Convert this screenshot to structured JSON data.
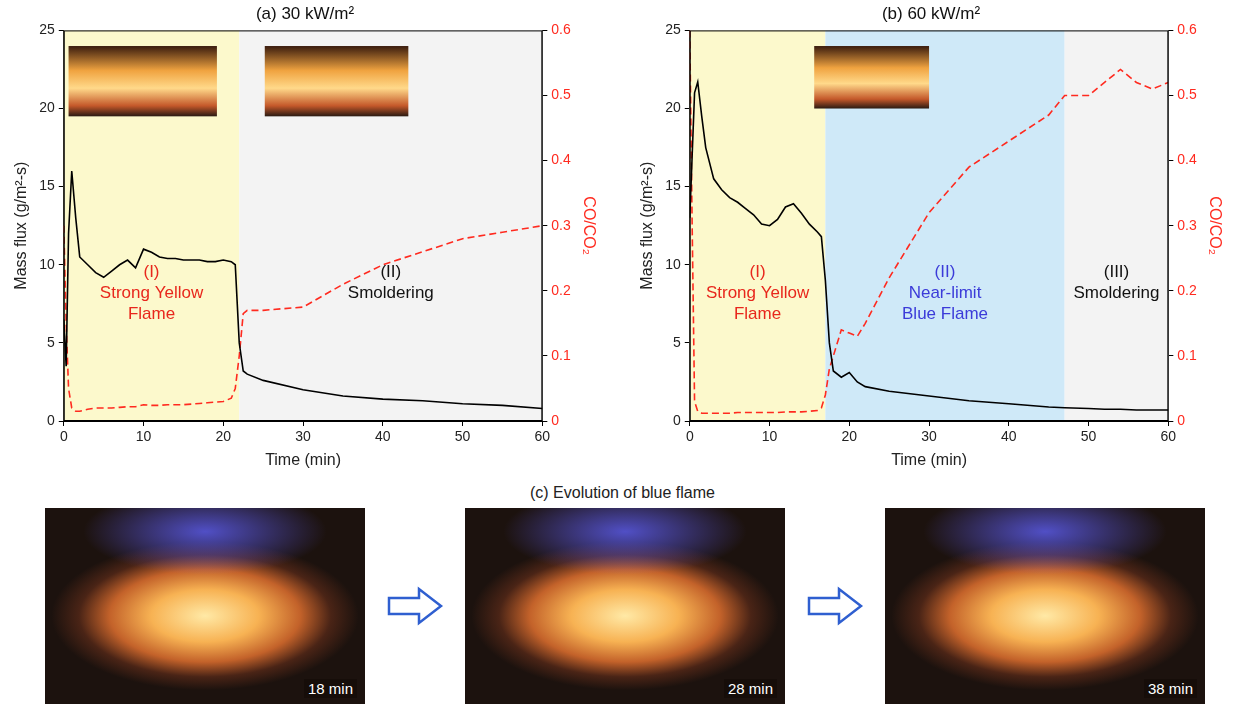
{
  "chart_data": [
    {
      "type": "line",
      "title": "(a) 30 kW/m²",
      "x_label": "Time (min)",
      "y_label": "Mass flux (g/m²-s)",
      "y2_label": "CO/CO₂",
      "x": [
        0,
        0.3,
        0.6,
        1,
        1.5,
        2,
        3,
        4,
        5,
        6,
        7,
        8,
        9,
        10,
        11,
        12,
        13,
        14,
        15,
        16,
        17,
        18,
        19,
        20,
        21,
        21.5,
        22,
        22.5,
        23,
        25,
        30,
        35,
        40,
        45,
        50,
        55,
        60
      ],
      "series": [
        {
          "color": "#000000",
          "line_style": "solid",
          "axis": "y",
          "values": [
            6.5,
            3.5,
            12,
            16,
            13,
            10.5,
            10,
            9.5,
            9.2,
            9.6,
            10,
            10.3,
            9.8,
            11,
            10.8,
            10.5,
            10.4,
            10.4,
            10.3,
            10.3,
            10.3,
            10.2,
            10.2,
            10.3,
            10.2,
            10,
            5,
            3.2,
            3,
            2.6,
            2,
            1.6,
            1.4,
            1.3,
            1.1,
            1,
            0.8
          ]
        },
        {
          "color": "#ff2a1f",
          "line_style": "dashed",
          "axis": "y2",
          "values": [
            0.3,
            0.15,
            0.05,
            0.02,
            0.015,
            0.015,
            0.018,
            0.02,
            0.02,
            0.02,
            0.021,
            0.022,
            0.022,
            0.025,
            0.024,
            0.024,
            0.025,
            0.025,
            0.025,
            0.026,
            0.027,
            0.028,
            0.029,
            0.03,
            0.035,
            0.05,
            0.1,
            0.165,
            0.17,
            0.17,
            0.175,
            0.21,
            0.24,
            0.26,
            0.28,
            0.29,
            0.3
          ]
        }
      ],
      "xlim": [
        0,
        60
      ],
      "xticks": [
        0,
        10,
        20,
        30,
        40,
        50,
        60
      ],
      "ylim": [
        0,
        25
      ],
      "yticks": [
        0,
        5,
        10,
        15,
        20,
        25
      ],
      "y2lim": [
        0,
        0.6
      ],
      "y2ticks": [
        0,
        0.1,
        0.2,
        0.3,
        0.4,
        0.5,
        0.6
      ],
      "grid": false,
      "annotations": [
        {
          "start": 0,
          "end": 22,
          "color": "#fcf9cc",
          "text": [
            "(I)",
            "Strong Yellow",
            "Flame"
          ],
          "text_color": "#e8271c"
        },
        {
          "start": 22,
          "end": 60,
          "color": "#f3f3f3",
          "text": [
            "(II)",
            "Smoldering"
          ],
          "text_color": "#111111"
        }
      ]
    },
    {
      "type": "line",
      "title": "(b) 60 kW/m²",
      "x_label": "Time (min)",
      "y_label": "Mass flux (g/m²-s)",
      "y2_label": "CO/CO₂",
      "x": [
        0,
        0.3,
        0.6,
        1,
        1.5,
        2,
        3,
        4,
        5,
        6,
        7,
        8,
        9,
        10,
        11,
        12,
        13,
        14,
        15,
        16,
        16.5,
        17,
        17.5,
        18,
        19,
        20,
        21,
        22,
        25,
        30,
        35,
        40,
        45,
        47,
        50,
        52,
        54,
        56,
        58,
        60
      ],
      "series": [
        {
          "color": "#000000",
          "line_style": "solid",
          "axis": "y",
          "values": [
            13,
            17,
            21,
            21.7,
            19.5,
            17.5,
            15.5,
            14.8,
            14.3,
            14,
            13.6,
            13.2,
            12.6,
            12.5,
            12.9,
            13.7,
            13.9,
            13.3,
            12.6,
            12.1,
            11.8,
            9,
            5,
            3.2,
            2.8,
            3.1,
            2.5,
            2.2,
            1.9,
            1.6,
            1.3,
            1.1,
            0.9,
            0.85,
            0.8,
            0.75,
            0.75,
            0.7,
            0.7,
            0.7
          ]
        },
        {
          "color": "#ff2a1f",
          "line_style": "dashed",
          "axis": "y2",
          "values": [
            0.6,
            0.3,
            0.03,
            0.015,
            0.012,
            0.012,
            0.012,
            0.012,
            0.012,
            0.013,
            0.013,
            0.013,
            0.013,
            0.013,
            0.013,
            0.014,
            0.014,
            0.014,
            0.015,
            0.016,
            0.02,
            0.04,
            0.08,
            0.1,
            0.14,
            0.135,
            0.13,
            0.15,
            0.22,
            0.32,
            0.39,
            0.43,
            0.47,
            0.5,
            0.5,
            0.52,
            0.54,
            0.52,
            0.51,
            0.52
          ]
        }
      ],
      "xlim": [
        0,
        60
      ],
      "xticks": [
        0,
        10,
        20,
        30,
        40,
        50,
        60
      ],
      "ylim": [
        0,
        25
      ],
      "yticks": [
        0,
        5,
        10,
        15,
        20,
        25
      ],
      "y2lim": [
        0,
        0.6
      ],
      "y2ticks": [
        0,
        0.1,
        0.2,
        0.3,
        0.4,
        0.5,
        0.6
      ],
      "grid": false,
      "annotations": [
        {
          "start": 0,
          "end": 17,
          "color": "#fcf9cc",
          "text": [
            "(I)",
            "Strong Yellow",
            "Flame"
          ],
          "text_color": "#e8271c"
        },
        {
          "start": 17,
          "end": 47,
          "color": "#cfe9f8",
          "text": [
            "(II)",
            "Near-limit",
            "Blue Flame"
          ],
          "text_color": "#3b3bd9"
        },
        {
          "start": 47,
          "end": 60,
          "color": "#f3f3f3",
          "text": [
            "(III)",
            "Smoldering"
          ],
          "text_color": "#111111"
        }
      ]
    }
  ],
  "photo_panel": {
    "title": "(c) Evolution of blue flame",
    "frame_labels": [
      "18 min",
      "28 min",
      "38 min"
    ]
  }
}
